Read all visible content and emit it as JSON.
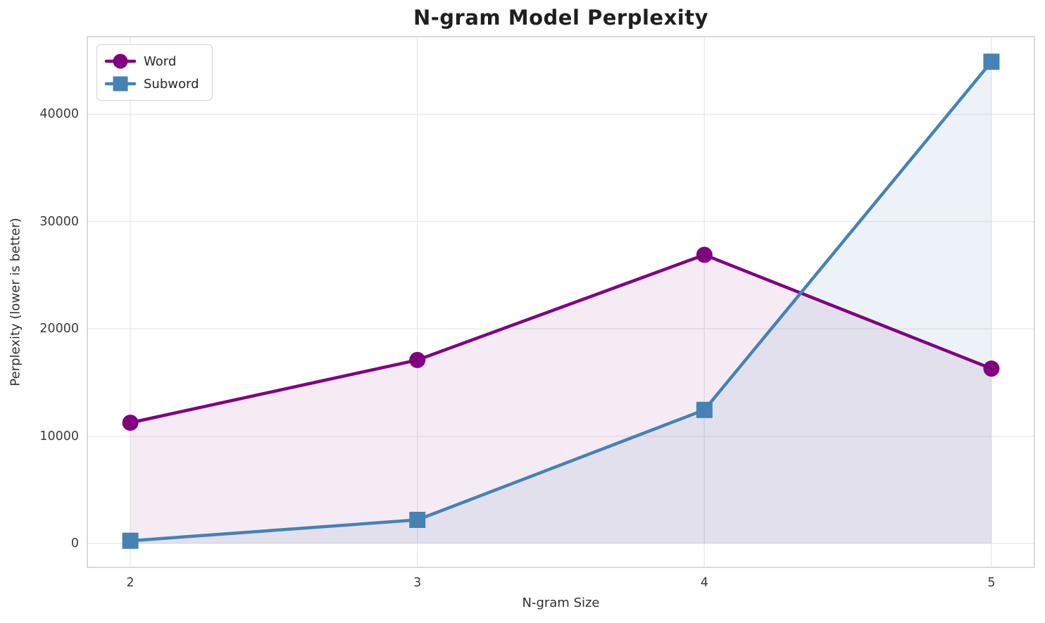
{
  "chart_data": {
    "type": "line",
    "title": "N-gram Model Perplexity",
    "xlabel": "N-gram Size",
    "ylabel": "Perplexity (lower is better)",
    "x": [
      2,
      3,
      4,
      5
    ],
    "series": [
      {
        "name": "Word",
        "values": [
          11250,
          17100,
          26900,
          16300
        ],
        "color": "#800080",
        "marker": "circle",
        "fill_opacity": 0.08
      },
      {
        "name": "Subword",
        "values": [
          250,
          2200,
          12450,
          44900
        ],
        "color": "#4682B4",
        "marker": "square",
        "fill_opacity": 0.1
      }
    ],
    "x_ticks": [
      "2",
      "3",
      "4",
      "5"
    ],
    "x_tick_values": [
      2,
      3,
      4,
      5
    ],
    "y_ticks": [
      "0",
      "10000",
      "20000",
      "30000",
      "40000"
    ],
    "y_tick_values": [
      0,
      10000,
      20000,
      30000,
      40000
    ],
    "xlim": [
      1.85,
      5.15
    ],
    "ylim": [
      -2230,
      47240
    ],
    "grid": true,
    "area_fill": true,
    "fill_baseline": 0,
    "legend_position": "upper left",
    "line_width": 4.5,
    "marker_size": 23,
    "colors": {
      "grid": "#e8e8e8",
      "spine": "#d6d6d6",
      "background": "#ffffff",
      "title_text": "#1f1f1f",
      "tick_text": "#3a3a3a"
    }
  }
}
